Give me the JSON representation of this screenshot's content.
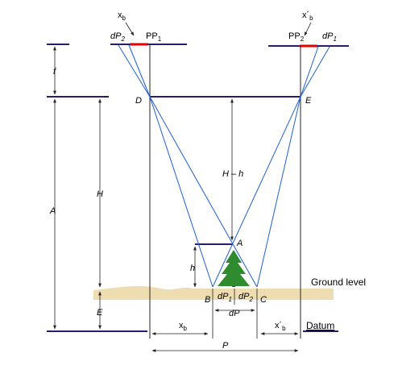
{
  "colors": {
    "film_plane": "#2b1c6f",
    "principal_point": "#e00000",
    "ray": "#1f5fd6",
    "vertical": "#222222",
    "ground": "#eeddb0",
    "tree": "#2e8b2e"
  },
  "labels": {
    "xb_top": "x",
    "xb_top_sub": "b",
    "xb_prime_top": "x´",
    "xb_prime_top_sub": "b",
    "dp2_left": "dP",
    "dp2_left_sub": "2",
    "pp1": "PP",
    "pp1_sub": "1",
    "pp2": "PP",
    "pp2_sub": "2",
    "dp1_right": "dP",
    "dp1_right_sub": "1",
    "f": "f",
    "D": "D",
    "E_point": "E",
    "H_minus_h": "H – h",
    "H": "H",
    "A_dim": "A",
    "A_point": "A",
    "h": "h",
    "E_dim": "E",
    "ground_level": "Ground level",
    "B": "B",
    "C": "C",
    "dp1_ground": "dP",
    "dp1_ground_sub": "1",
    "dp2_ground": "dP",
    "dp2_ground_sub": "2",
    "dP": "dP",
    "xb_bottom": "x",
    "xb_bottom_sub": "b",
    "xb_prime_bottom": "x´",
    "xb_prime_bottom_sub": "b",
    "datum": "Datum",
    "P": "P"
  }
}
